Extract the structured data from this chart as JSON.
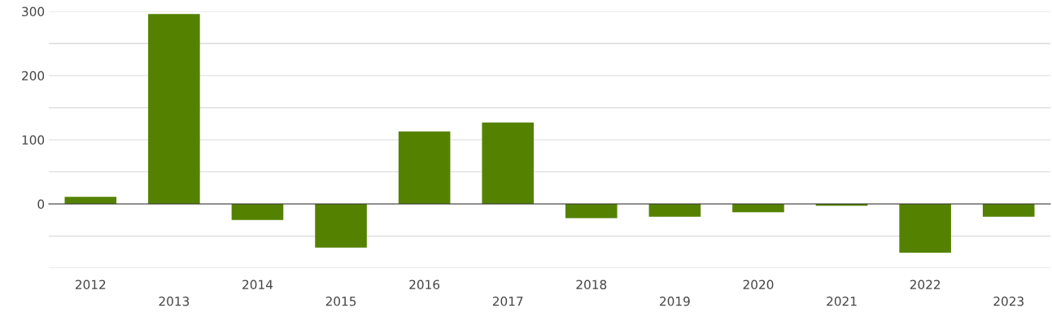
{
  "chart_data": {
    "type": "bar",
    "categories": [
      "2012",
      "2013",
      "2014",
      "2015",
      "2016",
      "2017",
      "2018",
      "2019",
      "2020",
      "2021",
      "2022",
      "2023"
    ],
    "values": [
      11,
      296,
      -25,
      -68,
      113,
      127,
      -22,
      -20,
      -13,
      -3,
      -76,
      -20
    ],
    "color": "#548200",
    "ylim": [
      -100,
      300
    ],
    "yticks": [
      {
        "value": -100,
        "label": null
      },
      {
        "value": -50,
        "label": null
      },
      0,
      {
        "value": 50,
        "label": null
      },
      100,
      {
        "value": 150,
        "label": null
      },
      200,
      {
        "value": 250,
        "label": null
      },
      300
    ],
    "grid": "y"
  }
}
